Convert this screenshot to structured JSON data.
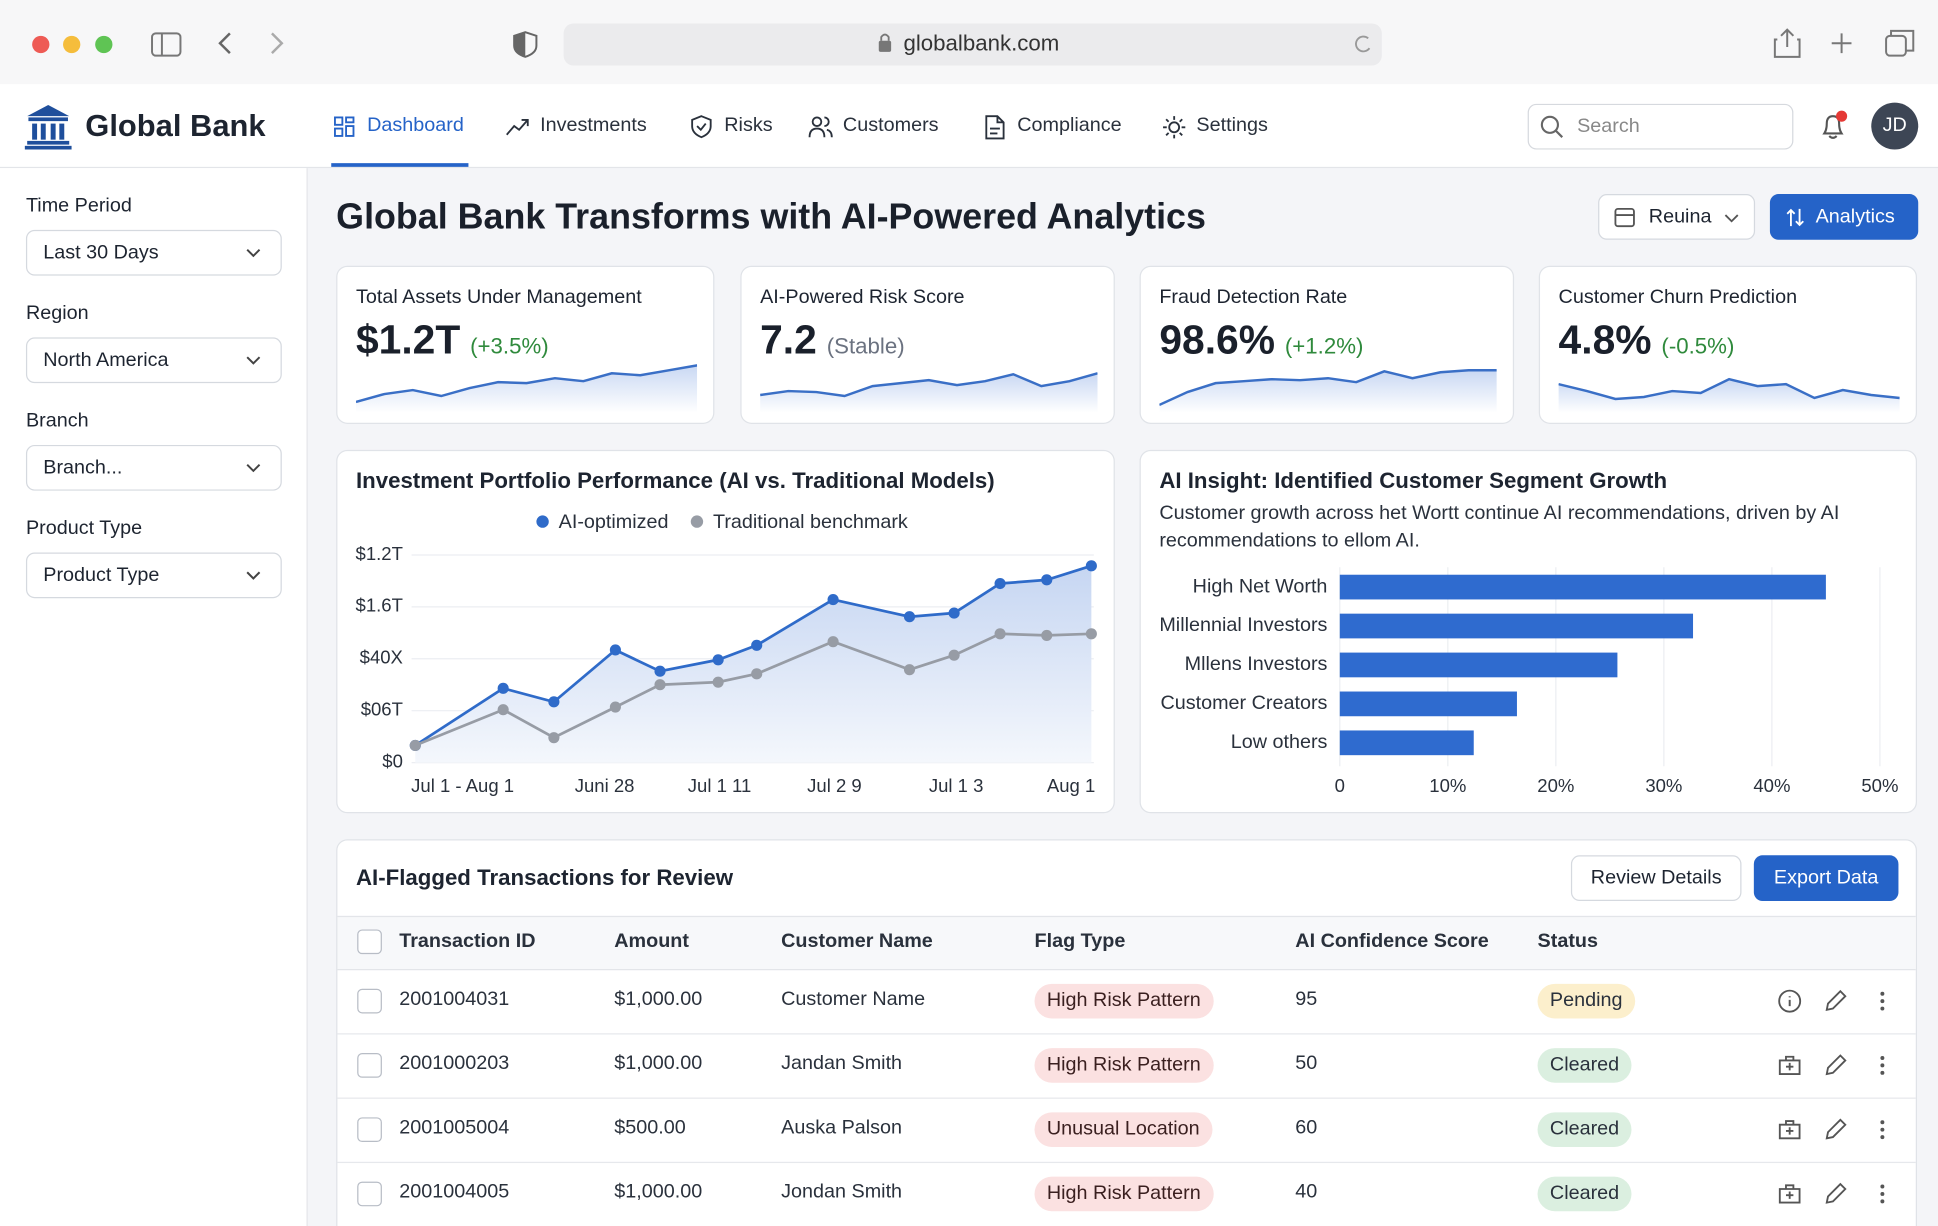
{
  "browser": {
    "url": "globalbank.com"
  },
  "header": {
    "brand": "Global Bank",
    "nav": [
      "Dashboard",
      "Investments",
      "Risks",
      "Customers",
      "Compliance",
      "Settings"
    ],
    "search_placeholder": "Search",
    "avatar": "JD"
  },
  "sidebar": {
    "filters": [
      {
        "label": "Time Period",
        "value": "Last 30 Days"
      },
      {
        "label": "Region",
        "value": "North America"
      },
      {
        "label": "Branch",
        "value": "Branch..."
      },
      {
        "label": "Product Type",
        "value": "Product Type"
      }
    ]
  },
  "page": {
    "title": "Global Bank Transforms with AI-Powered Analytics",
    "date_button": "Reuina",
    "analytics_button": "Analytics"
  },
  "kpi_trend_lim": [
    0,
    10
  ],
  "kpis": [
    {
      "title": "Total Assets Under Management",
      "value": "$1.2T",
      "change": "(+3.5%)",
      "change_color": "#2f8a3c",
      "trend": [
        1.2,
        2.8,
        3.6,
        2.4,
        4,
        5.2,
        5,
        6,
        5.4,
        7,
        6.6,
        7.6,
        8.6
      ]
    },
    {
      "title": "AI-Powered Risk Score",
      "value": "7.2",
      "change": "(Stable)",
      "change_color": "#6b7280",
      "trend": [
        2.6,
        3.4,
        3.2,
        2.4,
        4.4,
        5,
        5.6,
        4.6,
        5.4,
        6.8,
        4.4,
        5.4,
        7
      ]
    },
    {
      "title": "Fraud Detection Rate",
      "value": "98.6%",
      "change": "(+1.2%)",
      "change_color": "#2f8a3c",
      "trend": [
        0.6,
        3.2,
        5,
        5.4,
        5.8,
        5.6,
        6,
        5.2,
        7.4,
        6,
        7.2,
        7.6,
        7.6
      ]
    },
    {
      "title": "Customer Churn Prediction",
      "value": "4.8%",
      "change": "(-0.5%)",
      "change_color": "#2f8a3c",
      "trend": [
        4.8,
        3.4,
        1.8,
        2.2,
        3.4,
        3,
        5.8,
        4.4,
        4.8,
        2,
        3.6,
        2.6,
        2
      ]
    }
  ],
  "chart_data": [
    {
      "type": "line",
      "title": "Investment Portfolio Performance (AI vs. Traditional Models)",
      "legend": "top",
      "grid": true,
      "x": [
        0,
        13,
        20.5,
        29.6,
        36.2,
        44.8,
        50.5,
        61.8,
        73.1,
        79.7,
        86.5,
        93.4,
        100
      ],
      "xlim": [
        0,
        100
      ],
      "xticks": [
        {
          "value": 7,
          "label": "Jul 1 - Aug 1"
        },
        {
          "value": 28,
          "label": "Juni 28"
        },
        {
          "value": 45,
          "label": "Jul 1 11"
        },
        {
          "value": 62,
          "label": "Jul 2 9"
        },
        {
          "value": 80,
          "label": "Jul 1 3"
        },
        {
          "value": 97,
          "label": "Aug 1"
        }
      ],
      "ylim": [
        0,
        4
      ],
      "yticks": [
        {
          "value": 0,
          "label": "$0"
        },
        {
          "value": 1,
          "label": "$06T"
        },
        {
          "value": 2,
          "label": "$40X"
        },
        {
          "value": 3,
          "label": "$1.6T"
        },
        {
          "value": 4,
          "label": "$1.2T"
        }
      ],
      "series": [
        {
          "name": "AI-optimized",
          "color": "#2f6bc9",
          "values": [
            0.33,
            1.43,
            1.17,
            2.17,
            1.76,
            1.98,
            2.26,
            3.14,
            2.81,
            2.88,
            3.45,
            3.52,
            3.79
          ]
        },
        {
          "name": "Traditional benchmark",
          "color": "#979ca5",
          "values": [
            0.33,
            1.02,
            0.48,
            1.07,
            1.5,
            1.55,
            1.71,
            2.33,
            1.79,
            2.07,
            2.48,
            2.45,
            2.48
          ]
        }
      ]
    },
    {
      "type": "hbar",
      "title": "AI Insight: Identified Customer Segment Growth",
      "subtitle": "Customer growth across het Wortt continue AI recommendations, driven by AI recommendations to ellom AI.",
      "categories": [
        "High Net Worth",
        "Millennial Investors",
        "Mllens Investors",
        "Customer Creators",
        "Low others"
      ],
      "values": [
        45,
        32.7,
        25.7,
        16.4,
        12.4
      ],
      "color": "#2f6bcf",
      "grid": true,
      "xlim": [
        0,
        50
      ],
      "xticks": [
        0,
        {
          "value": 10,
          "label": "10%"
        },
        {
          "value": 20,
          "label": "20%"
        },
        {
          "value": 30,
          "label": "30%"
        },
        {
          "value": 40,
          "label": "40%"
        },
        {
          "value": 50,
          "label": "50%"
        }
      ]
    }
  ],
  "table": {
    "title": "AI-Flagged Transactions for Review",
    "buttons": [
      "Review Details",
      "Export Data"
    ],
    "columns": [
      "Transaction ID",
      "Amount",
      "Customer Name",
      "Flag Type",
      "AI Confidence Score",
      "Status"
    ],
    "status_colors": {
      "Pending": "#fcefcc",
      "Cleared": "#dbefe0"
    },
    "rows": [
      [
        "2001004031",
        "$1,000.00",
        "Customer Name",
        "High Risk Pattern",
        95,
        "Pending"
      ],
      [
        "2001000203",
        "$1,000.00",
        "Jandan Smith",
        "High Risk Pattern",
        50,
        "Cleared"
      ],
      [
        "2001005004",
        "$500.00",
        "Auska Palson",
        "Unusual Location",
        60,
        "Cleared"
      ],
      [
        "2001004005",
        "$1,000.00",
        "Jondan Smith",
        "High Risk Pattern",
        40,
        "Cleared"
      ]
    ]
  }
}
